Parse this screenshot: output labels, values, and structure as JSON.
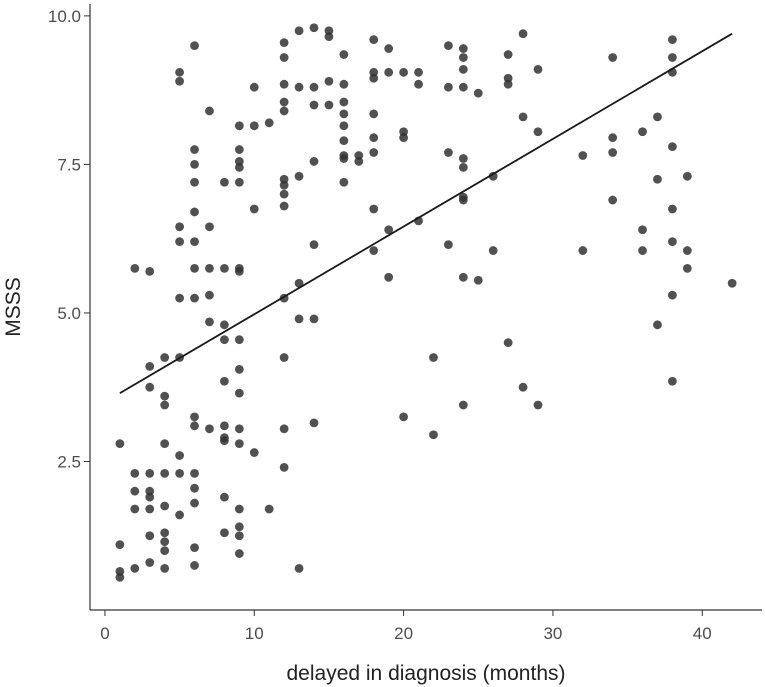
{
  "chart_data": {
    "type": "scatter",
    "title": "",
    "xlabel": "delayed in diagnosis (months)",
    "ylabel": "MSSS",
    "xlim": [
      -1,
      44
    ],
    "ylim": [
      0.0,
      10.2
    ],
    "xticks": [
      0,
      10,
      20,
      30,
      40
    ],
    "xtick_labels": [
      "0",
      "10",
      "20",
      "30",
      "40"
    ],
    "yticks": [
      2.5,
      5.0,
      7.5,
      10.0
    ],
    "ytick_labels": [
      "2.5",
      "5.0",
      "7.5",
      "10.0"
    ],
    "grid": false,
    "legend": "none",
    "colors": {
      "points": "#333333",
      "fit_line": "#1a1a1a",
      "axes": "#333333"
    },
    "fit_line": {
      "x": [
        1,
        42
      ],
      "y": [
        3.65,
        9.7
      ]
    },
    "points": [
      [
        1,
        2.8
      ],
      [
        1,
        1.1
      ],
      [
        1,
        0.65
      ],
      [
        1,
        0.55
      ],
      [
        2,
        5.75
      ],
      [
        2,
        2.3
      ],
      [
        2,
        2.0
      ],
      [
        2,
        1.7
      ],
      [
        2,
        0.7
      ],
      [
        3,
        5.7
      ],
      [
        3,
        4.1
      ],
      [
        3,
        3.75
      ],
      [
        3,
        2.3
      ],
      [
        3,
        2.0
      ],
      [
        3,
        1.9
      ],
      [
        3,
        1.7
      ],
      [
        3,
        1.25
      ],
      [
        3,
        0.8
      ],
      [
        4,
        4.25
      ],
      [
        4,
        3.6
      ],
      [
        4,
        3.45
      ],
      [
        4,
        2.8
      ],
      [
        4,
        2.3
      ],
      [
        4,
        1.75
      ],
      [
        4,
        1.3
      ],
      [
        4,
        1.15
      ],
      [
        4,
        1.0
      ],
      [
        4,
        0.7
      ],
      [
        5,
        9.05
      ],
      [
        5,
        8.9
      ],
      [
        5,
        6.45
      ],
      [
        5,
        6.2
      ],
      [
        5,
        5.25
      ],
      [
        5,
        4.25
      ],
      [
        5,
        2.6
      ],
      [
        5,
        2.3
      ],
      [
        5,
        1.6
      ],
      [
        6,
        9.5
      ],
      [
        6,
        7.75
      ],
      [
        6,
        7.5
      ],
      [
        6,
        7.2
      ],
      [
        6,
        6.7
      ],
      [
        6,
        6.2
      ],
      [
        6,
        5.75
      ],
      [
        6,
        5.25
      ],
      [
        6,
        3.25
      ],
      [
        6,
        3.1
      ],
      [
        6,
        2.3
      ],
      [
        6,
        2.05
      ],
      [
        6,
        1.8
      ],
      [
        6,
        1.05
      ],
      [
        6,
        0.75
      ],
      [
        7,
        8.4
      ],
      [
        7,
        6.45
      ],
      [
        7,
        5.75
      ],
      [
        7,
        5.3
      ],
      [
        7,
        4.85
      ],
      [
        7,
        3.05
      ],
      [
        8,
        7.2
      ],
      [
        8,
        5.75
      ],
      [
        8,
        4.8
      ],
      [
        8,
        4.55
      ],
      [
        8,
        3.85
      ],
      [
        8,
        3.1
      ],
      [
        8,
        2.9
      ],
      [
        8,
        2.85
      ],
      [
        8,
        1.9
      ],
      [
        8,
        1.3
      ],
      [
        9,
        8.15
      ],
      [
        9,
        7.75
      ],
      [
        9,
        7.55
      ],
      [
        9,
        7.45
      ],
      [
        9,
        7.2
      ],
      [
        9,
        5.75
      ],
      [
        9,
        5.7
      ],
      [
        9,
        4.55
      ],
      [
        9,
        4.05
      ],
      [
        9,
        3.65
      ],
      [
        9,
        3.05
      ],
      [
        9,
        2.8
      ],
      [
        9,
        1.7
      ],
      [
        9,
        1.4
      ],
      [
        9,
        1.25
      ],
      [
        9,
        0.95
      ],
      [
        10,
        8.8
      ],
      [
        10,
        8.15
      ],
      [
        10,
        6.75
      ],
      [
        10,
        2.65
      ],
      [
        11,
        8.2
      ],
      [
        11,
        1.7
      ],
      [
        12,
        9.55
      ],
      [
        12,
        9.3
      ],
      [
        12,
        8.85
      ],
      [
        12,
        8.55
      ],
      [
        12,
        8.4
      ],
      [
        12,
        7.25
      ],
      [
        12,
        7.15
      ],
      [
        12,
        7.0
      ],
      [
        12,
        6.8
      ],
      [
        12,
        5.25
      ],
      [
        12,
        4.25
      ],
      [
        12,
        3.05
      ],
      [
        12,
        2.4
      ],
      [
        13,
        9.75
      ],
      [
        13,
        8.8
      ],
      [
        13,
        7.3
      ],
      [
        13,
        5.5
      ],
      [
        13,
        4.9
      ],
      [
        13,
        0.7
      ],
      [
        14,
        9.8
      ],
      [
        14,
        8.8
      ],
      [
        14,
        8.5
      ],
      [
        14,
        7.55
      ],
      [
        14,
        6.15
      ],
      [
        14,
        4.9
      ],
      [
        14,
        3.15
      ],
      [
        15,
        9.75
      ],
      [
        15,
        9.65
      ],
      [
        15,
        8.9
      ],
      [
        15,
        8.5
      ],
      [
        16,
        9.35
      ],
      [
        16,
        8.85
      ],
      [
        16,
        8.55
      ],
      [
        16,
        8.35
      ],
      [
        16,
        8.15
      ],
      [
        16,
        7.9
      ],
      [
        16,
        7.65
      ],
      [
        16,
        7.6
      ],
      [
        16,
        7.2
      ],
      [
        17,
        7.65
      ],
      [
        17,
        7.55
      ],
      [
        18,
        9.6
      ],
      [
        18,
        9.05
      ],
      [
        18,
        8.95
      ],
      [
        18,
        8.35
      ],
      [
        18,
        7.95
      ],
      [
        18,
        7.7
      ],
      [
        18,
        6.75
      ],
      [
        18,
        6.05
      ],
      [
        19,
        9.45
      ],
      [
        19,
        9.05
      ],
      [
        19,
        6.4
      ],
      [
        19,
        5.6
      ],
      [
        20,
        9.05
      ],
      [
        20,
        8.05
      ],
      [
        20,
        7.95
      ],
      [
        20,
        3.25
      ],
      [
        21,
        9.05
      ],
      [
        21,
        8.85
      ],
      [
        21,
        6.55
      ],
      [
        22,
        4.25
      ],
      [
        22,
        2.95
      ],
      [
        23,
        9.5
      ],
      [
        23,
        8.8
      ],
      [
        23,
        7.7
      ],
      [
        23,
        6.15
      ],
      [
        24,
        9.45
      ],
      [
        24,
        9.3
      ],
      [
        24,
        9.1
      ],
      [
        24,
        8.8
      ],
      [
        24,
        7.6
      ],
      [
        24,
        7.45
      ],
      [
        24,
        6.95
      ],
      [
        24,
        6.9
      ],
      [
        24,
        5.6
      ],
      [
        24,
        3.45
      ],
      [
        25,
        8.7
      ],
      [
        25,
        5.55
      ],
      [
        26,
        7.3
      ],
      [
        26,
        6.05
      ],
      [
        27,
        9.35
      ],
      [
        27,
        8.95
      ],
      [
        27,
        8.85
      ],
      [
        27,
        4.5
      ],
      [
        28,
        9.7
      ],
      [
        28,
        8.3
      ],
      [
        28,
        3.75
      ],
      [
        29,
        9.1
      ],
      [
        29,
        8.05
      ],
      [
        29,
        3.45
      ],
      [
        32,
        7.65
      ],
      [
        32,
        6.05
      ],
      [
        34,
        9.3
      ],
      [
        34,
        7.95
      ],
      [
        34,
        7.7
      ],
      [
        34,
        6.9
      ],
      [
        36,
        8.05
      ],
      [
        36,
        6.4
      ],
      [
        36,
        6.05
      ],
      [
        37,
        8.3
      ],
      [
        37,
        7.25
      ],
      [
        37,
        4.8
      ],
      [
        38,
        9.6
      ],
      [
        38,
        9.3
      ],
      [
        38,
        9.05
      ],
      [
        38,
        7.8
      ],
      [
        38,
        6.75
      ],
      [
        38,
        6.2
      ],
      [
        38,
        5.3
      ],
      [
        38,
        3.85
      ],
      [
        39,
        7.3
      ],
      [
        39,
        6.05
      ],
      [
        39,
        5.75
      ],
      [
        42,
        5.5
      ]
    ]
  }
}
